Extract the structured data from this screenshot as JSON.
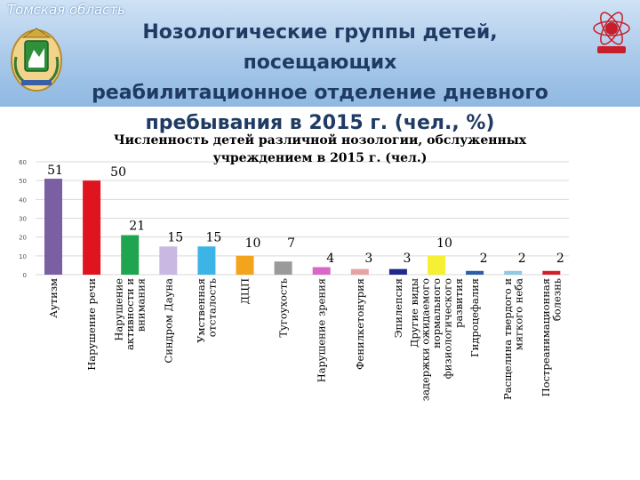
{
  "header": {
    "region": "Томская область",
    "title": "Нозологические группы детей, посещающих реабилитационное отделение дневного пребывания в 2015 г. (чел., %)",
    "title_lines": [
      "Нозологические группы детей, посещающих",
      "реабилитационное отделение дневного",
      "пребывания  в 2015 г. (чел., %)"
    ]
  },
  "colors": {
    "header_top": "#cfe2f5",
    "header_bottom": "#8fb8e2",
    "title_text": "#1f3b63"
  },
  "chart_data": {
    "type": "bar",
    "title": "Численность детей различной нозологии, обслуженных учреждением в 2015 г. (чел.)",
    "title_lines": [
      "Численность детей различной нозологии, обслуженных",
      "учреждением в 2015 г. (чел.)"
    ],
    "ylim": [
      0,
      60
    ],
    "yticks": [
      0,
      10,
      20,
      30,
      40,
      50,
      60
    ],
    "grid": true,
    "legend": "none",
    "categories": [
      [
        "Аутизм"
      ],
      [
        "Нарушение речи"
      ],
      [
        "Нарушение",
        "активности и",
        "внимания"
      ],
      [
        "Синдром Дауна"
      ],
      [
        "Умственная",
        "отсталость"
      ],
      [
        "ДЦП"
      ],
      [
        "Тугоухость"
      ],
      [
        "Нарушение зрения"
      ],
      [
        "Фенилкетонурия"
      ],
      [
        "Эпилепсия"
      ],
      [
        "Другие виды",
        "задержки ожидаемого",
        "нормального",
        "физиологического",
        "развития"
      ],
      [
        "Гидроцефалия"
      ],
      [
        "Расщелина твердого и",
        "мягкого неба"
      ],
      [
        "Постреанимационная",
        "болезнь"
      ]
    ],
    "values": [
      51,
      50,
      21,
      15,
      15,
      10,
      7,
      4,
      3,
      3,
      10,
      2,
      2,
      2
    ],
    "bar_colors": [
      "#7b5fa3",
      "#e0141e",
      "#1fa550",
      "#c9b8e2",
      "#3cb4e6",
      "#f3a31c",
      "#9a9a9a",
      "#d868c8",
      "#e6a3a3",
      "#1f2a8a",
      "#f5f034",
      "#2a5fa8",
      "#90c8e6",
      "#d2202a"
    ]
  }
}
